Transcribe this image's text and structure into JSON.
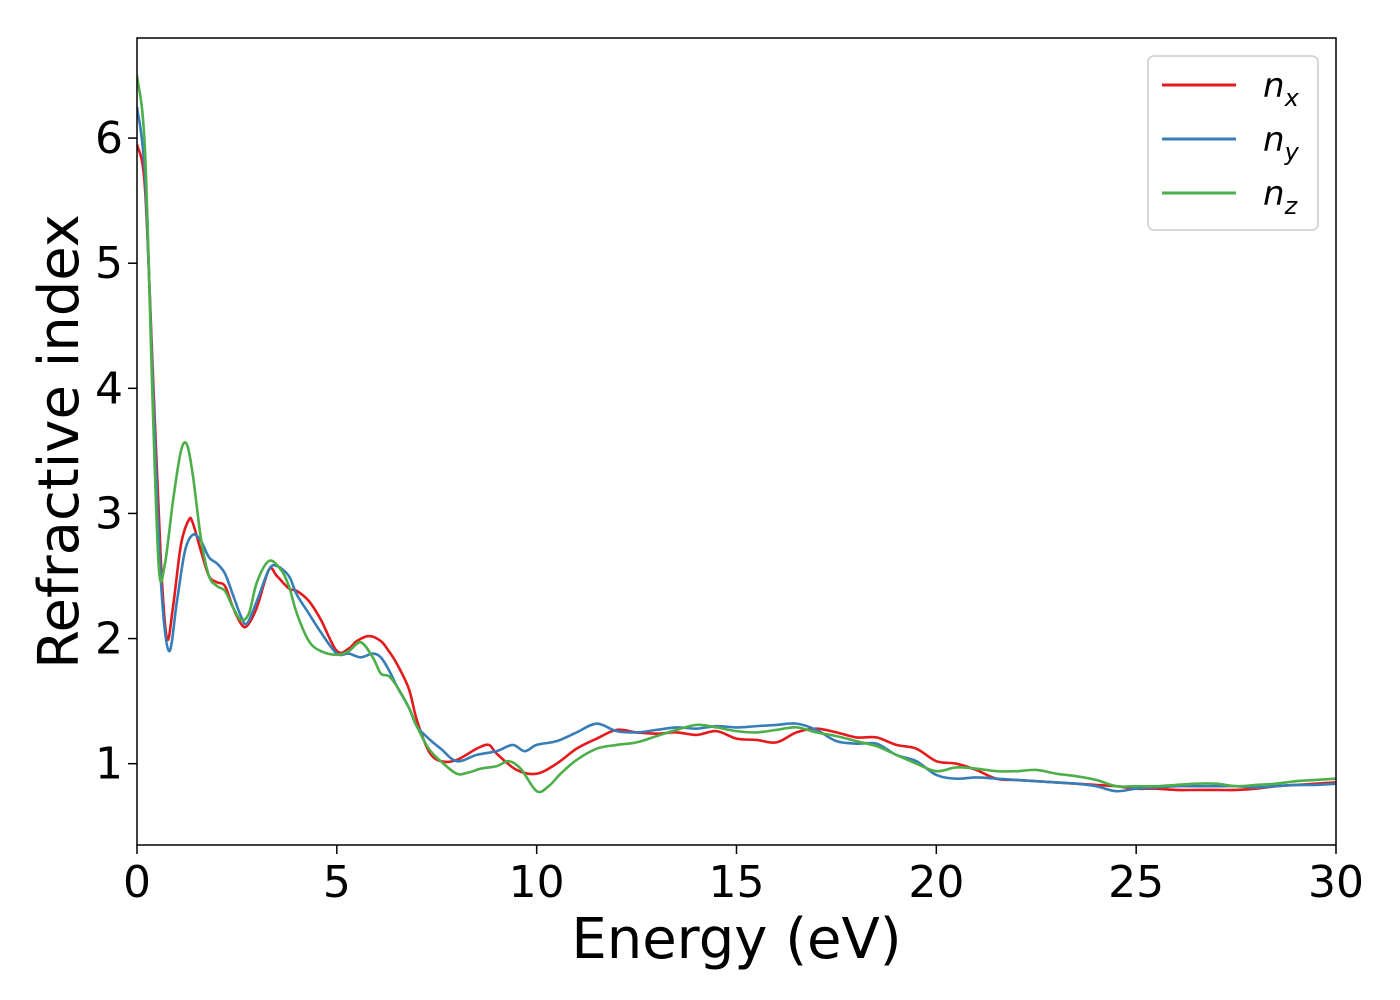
{
  "chart_data": {
    "type": "line",
    "xlabel": "Energy (eV)",
    "ylabel": "Refractive index",
    "xlim": [
      0,
      30
    ],
    "ylim": [
      0.35,
      6.8
    ],
    "xticks": [
      0,
      5,
      10,
      15,
      20,
      25,
      30
    ],
    "yticks": [
      1,
      2,
      3,
      4,
      5,
      6
    ],
    "grid": false,
    "legend_position": "top-right",
    "series": [
      {
        "name": "n",
        "subscript": "x",
        "color": "#e41a1c",
        "x": [
          0,
          0.2,
          0.4,
          0.6,
          0.75,
          0.9,
          1.1,
          1.3,
          1.4,
          1.6,
          1.8,
          2.0,
          2.2,
          2.4,
          2.6,
          2.75,
          3.0,
          3.3,
          3.5,
          3.8,
          4.0,
          4.3,
          4.6,
          5.0,
          5.3,
          5.5,
          5.8,
          6.1,
          6.3,
          6.5,
          6.8,
          7.0,
          7.3,
          7.6,
          8.0,
          8.5,
          8.8,
          9.0,
          9.5,
          10.0,
          10.5,
          11.0,
          11.5,
          12.0,
          12.5,
          13.0,
          13.5,
          14.0,
          14.5,
          15.0,
          15.5,
          16.0,
          16.5,
          17.0,
          17.5,
          18.0,
          18.5,
          19.0,
          19.5,
          20.0,
          20.5,
          21.0,
          21.5,
          22.0,
          22.5,
          23.0,
          23.5,
          24.0,
          24.5,
          25.0,
          25.5,
          26.0,
          26.5,
          27.0,
          27.5,
          28.0,
          28.5,
          29.0,
          29.5,
          30.0
        ],
        "y": [
          5.95,
          5.6,
          4.1,
          2.6,
          2.0,
          2.25,
          2.75,
          2.95,
          2.92,
          2.7,
          2.5,
          2.45,
          2.42,
          2.25,
          2.12,
          2.1,
          2.25,
          2.55,
          2.5,
          2.4,
          2.38,
          2.3,
          2.15,
          1.9,
          1.92,
          1.98,
          2.02,
          1.98,
          1.9,
          1.8,
          1.6,
          1.35,
          1.1,
          1.02,
          1.03,
          1.12,
          1.15,
          1.08,
          0.95,
          0.92,
          1.0,
          1.12,
          1.2,
          1.27,
          1.25,
          1.24,
          1.25,
          1.23,
          1.26,
          1.2,
          1.19,
          1.17,
          1.25,
          1.28,
          1.25,
          1.21,
          1.21,
          1.15,
          1.12,
          1.02,
          1.0,
          0.95,
          0.88,
          0.87,
          0.86,
          0.85,
          0.84,
          0.83,
          0.82,
          0.8,
          0.8,
          0.79,
          0.79,
          0.79,
          0.79,
          0.8,
          0.82,
          0.83,
          0.84,
          0.85
        ]
      },
      {
        "name": "n",
        "subscript": "y",
        "color": "#377eb8",
        "x": [
          0,
          0.2,
          0.4,
          0.6,
          0.8,
          1.0,
          1.2,
          1.4,
          1.6,
          1.8,
          2.0,
          2.2,
          2.4,
          2.6,
          2.75,
          3.0,
          3.3,
          3.5,
          3.8,
          4.0,
          4.3,
          4.6,
          5.0,
          5.3,
          5.6,
          5.9,
          6.1,
          6.3,
          6.5,
          6.8,
          7.0,
          7.3,
          7.6,
          8.0,
          8.5,
          9.0,
          9.4,
          9.7,
          10.0,
          10.5,
          11.0,
          11.5,
          12.0,
          12.5,
          13.0,
          13.5,
          14.0,
          14.5,
          15.0,
          15.5,
          16.0,
          16.5,
          17.0,
          17.5,
          18.0,
          18.5,
          19.0,
          19.5,
          20.0,
          20.5,
          21.0,
          21.5,
          22.0,
          22.5,
          23.0,
          23.5,
          24.0,
          24.5,
          25.0,
          25.5,
          26.0,
          26.5,
          27.0,
          27.5,
          28.0,
          28.5,
          29.0,
          29.5,
          30.0
        ],
        "y": [
          6.25,
          5.7,
          4.0,
          2.45,
          1.9,
          2.3,
          2.7,
          2.83,
          2.78,
          2.65,
          2.6,
          2.52,
          2.35,
          2.18,
          2.12,
          2.3,
          2.55,
          2.58,
          2.5,
          2.35,
          2.2,
          2.05,
          1.88,
          1.88,
          1.85,
          1.88,
          1.85,
          1.75,
          1.62,
          1.45,
          1.3,
          1.2,
          1.12,
          1.02,
          1.07,
          1.1,
          1.15,
          1.1,
          1.15,
          1.18,
          1.25,
          1.32,
          1.26,
          1.25,
          1.27,
          1.29,
          1.28,
          1.3,
          1.29,
          1.3,
          1.31,
          1.32,
          1.27,
          1.18,
          1.16,
          1.16,
          1.07,
          1.02,
          0.91,
          0.88,
          0.89,
          0.88,
          0.87,
          0.86,
          0.85,
          0.84,
          0.82,
          0.78,
          0.8,
          0.81,
          0.82,
          0.82,
          0.82,
          0.82,
          0.81,
          0.82,
          0.83,
          0.83,
          0.84
        ]
      },
      {
        "name": "n",
        "subscript": "z",
        "color": "#4daf4a",
        "x": [
          0,
          0.2,
          0.4,
          0.55,
          0.7,
          0.9,
          1.1,
          1.25,
          1.4,
          1.6,
          1.8,
          2.0,
          2.2,
          2.4,
          2.6,
          2.8,
          3.0,
          3.3,
          3.6,
          3.8,
          4.0,
          4.3,
          4.6,
          5.0,
          5.3,
          5.6,
          5.9,
          6.1,
          6.3,
          6.5,
          6.8,
          7.0,
          7.3,
          7.6,
          8.0,
          8.3,
          8.6,
          9.0,
          9.3,
          9.6,
          10.0,
          10.3,
          10.6,
          11.0,
          11.5,
          12.0,
          12.5,
          13.0,
          13.5,
          14.0,
          14.5,
          15.0,
          15.5,
          16.0,
          16.5,
          17.0,
          17.5,
          18.0,
          18.5,
          19.0,
          19.5,
          20.0,
          20.5,
          21.0,
          21.5,
          22.0,
          22.5,
          23.0,
          23.5,
          24.0,
          24.5,
          25.0,
          25.5,
          26.0,
          26.5,
          27.0,
          27.5,
          28.0,
          28.5,
          29.0,
          29.5,
          30.0
        ],
        "y": [
          6.5,
          5.9,
          3.8,
          2.55,
          2.6,
          3.1,
          3.5,
          3.55,
          3.3,
          2.8,
          2.5,
          2.42,
          2.38,
          2.25,
          2.15,
          2.2,
          2.45,
          2.62,
          2.55,
          2.42,
          2.2,
          1.98,
          1.9,
          1.87,
          1.9,
          1.97,
          1.85,
          1.72,
          1.7,
          1.62,
          1.45,
          1.3,
          1.12,
          1.02,
          0.92,
          0.93,
          0.96,
          0.98,
          1.02,
          0.96,
          0.78,
          0.82,
          0.92,
          1.03,
          1.12,
          1.15,
          1.17,
          1.22,
          1.27,
          1.31,
          1.29,
          1.26,
          1.25,
          1.27,
          1.29,
          1.25,
          1.22,
          1.18,
          1.14,
          1.07,
          1.0,
          0.94,
          0.97,
          0.96,
          0.94,
          0.94,
          0.95,
          0.92,
          0.9,
          0.87,
          0.82,
          0.82,
          0.82,
          0.83,
          0.84,
          0.84,
          0.82,
          0.83,
          0.84,
          0.86,
          0.87,
          0.88
        ]
      }
    ]
  }
}
